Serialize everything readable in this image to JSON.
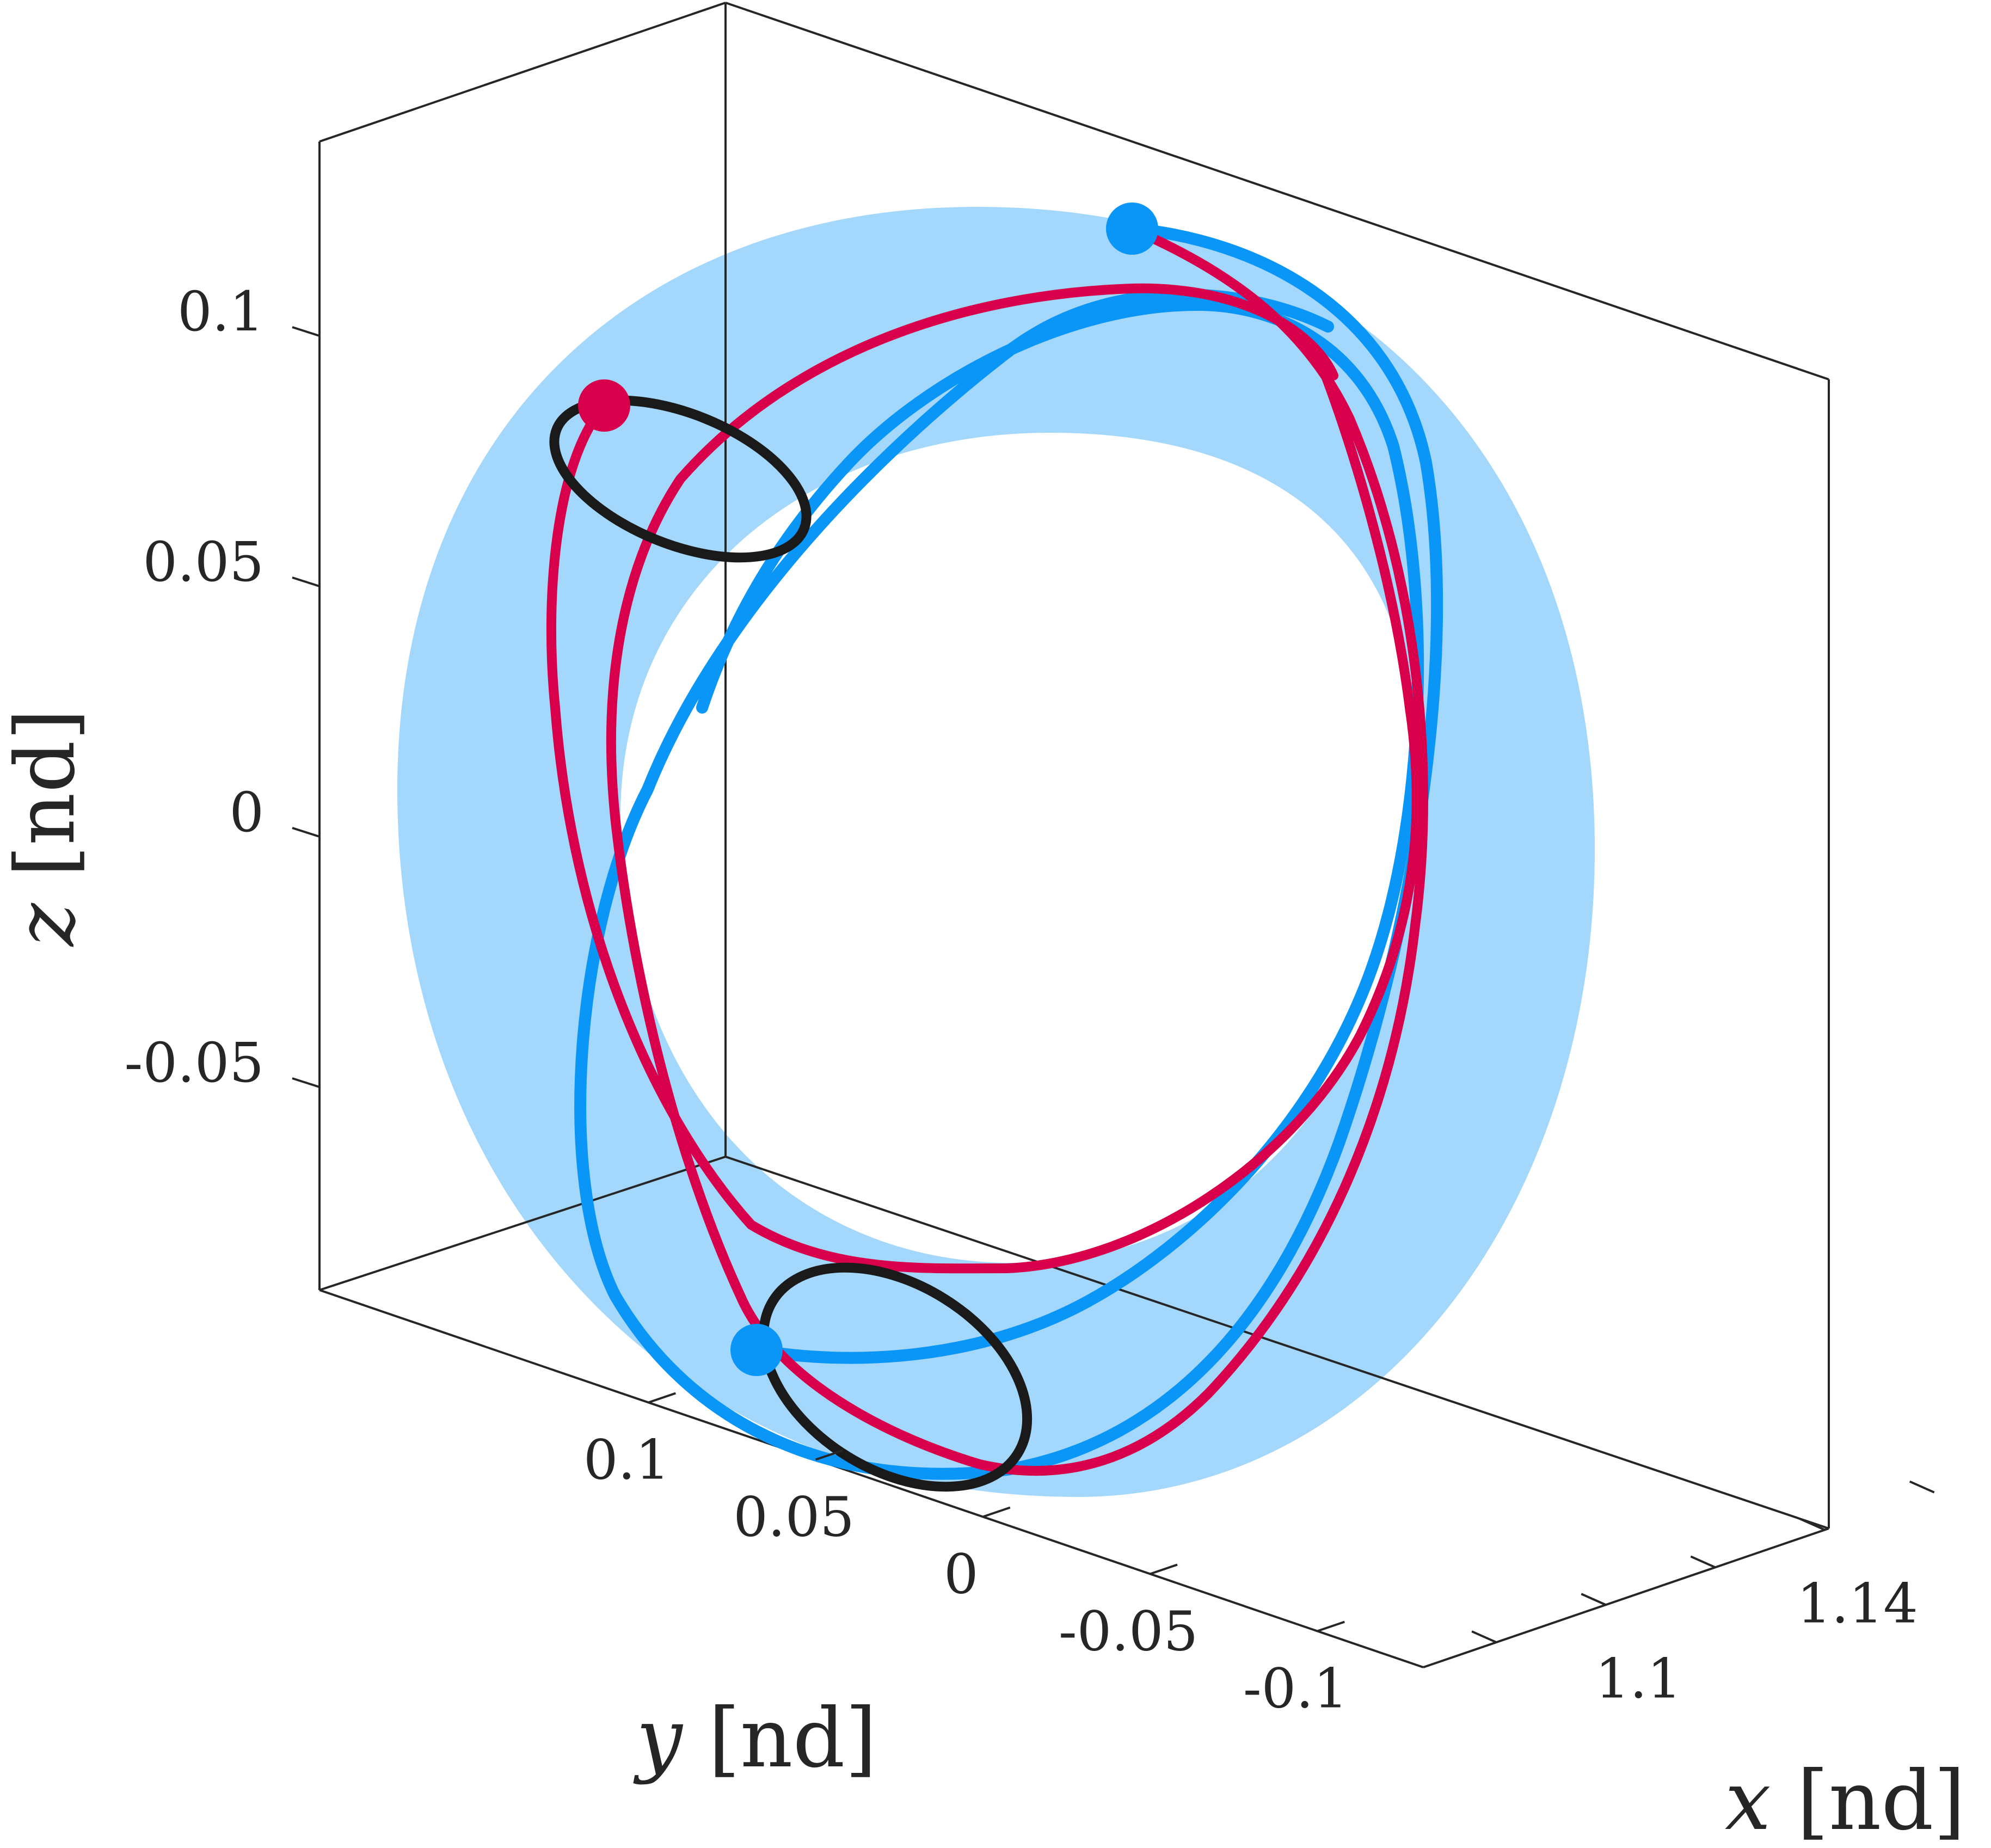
{
  "chart_data": {
    "type": "line3d",
    "title": "",
    "xlabel": {
      "var": "x",
      "unit": "[nd]"
    },
    "ylabel": {
      "var": "y",
      "unit": "[nd]"
    },
    "zlabel": {
      "var": "z",
      "unit": "[nd]"
    },
    "x_ticks": [
      {
        "value": 1.1,
        "label": "1.1"
      },
      {
        "value": 1.14,
        "label": "1.14"
      }
    ],
    "y_ticks": [
      {
        "value": 0.1,
        "label": "0.1"
      },
      {
        "value": 0.05,
        "label": "0.05"
      },
      {
        "value": 0,
        "label": "0"
      },
      {
        "value": -0.05,
        "label": "-0.05"
      },
      {
        "value": -0.1,
        "label": "-0.1"
      }
    ],
    "z_ticks": [
      {
        "value": 0.1,
        "label": "0.1"
      },
      {
        "value": 0.05,
        "label": "0.05"
      },
      {
        "value": 0,
        "label": "0"
      },
      {
        "value": -0.05,
        "label": "-0.05"
      }
    ],
    "grid": false,
    "legend": "none",
    "colors": {
      "shaded_region": "#a3d7fb",
      "blue_orbit": "#0a96f6",
      "red_transfer": "#d8004a",
      "black_orbit": "#1a1a1a"
    },
    "series": [
      {
        "role": "shaded annulus region",
        "color": "#a3d7fb"
      },
      {
        "role": "blue halo orbit",
        "color": "#0a96f6"
      },
      {
        "role": "red transfer arcs",
        "color": "#d8004a"
      },
      {
        "role": "black periodic orbits",
        "color": "#1a1a1a"
      }
    ],
    "markers": [
      {
        "color": "#0a96f6",
        "x": 1.15,
        "y": -0.02,
        "z": 0.11
      },
      {
        "color": "#d8004a",
        "x": 1.09,
        "y": 0.04,
        "z": 0.085
      },
      {
        "color": "#0a96f6",
        "x": 1.1,
        "y": 0.02,
        "z": -0.09
      }
    ]
  }
}
